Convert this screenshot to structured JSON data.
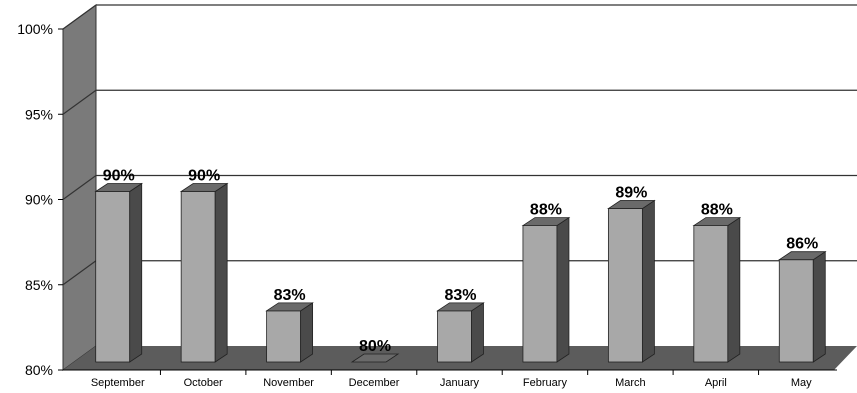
{
  "chart_data": {
    "type": "bar",
    "title": "",
    "xlabel": "",
    "ylabel": "",
    "categories": [
      "September",
      "October",
      "November",
      "December",
      "January",
      "February",
      "March",
      "April",
      "May"
    ],
    "values": [
      90,
      90,
      83,
      80,
      83,
      88,
      89,
      88,
      86
    ],
    "data_labels": [
      "90%",
      "90%",
      "83%",
      "80%",
      "83%",
      "88%",
      "89%",
      "88%",
      "86%"
    ],
    "ylim": [
      80,
      100
    ],
    "yticks": [
      80,
      85,
      90,
      95,
      100
    ],
    "ytick_labels": [
      "80%",
      "85%",
      "90%",
      "95%",
      "100%"
    ],
    "grid": true,
    "legend": "none",
    "style": "3d",
    "colors": {
      "bar_front": "#a8a8a8",
      "bar_top": "#6a6a6a",
      "bar_side": "#4a4a4a",
      "wall": "#7a7a7a",
      "floor": "#5c5c5c",
      "gridline": "#333333"
    }
  }
}
